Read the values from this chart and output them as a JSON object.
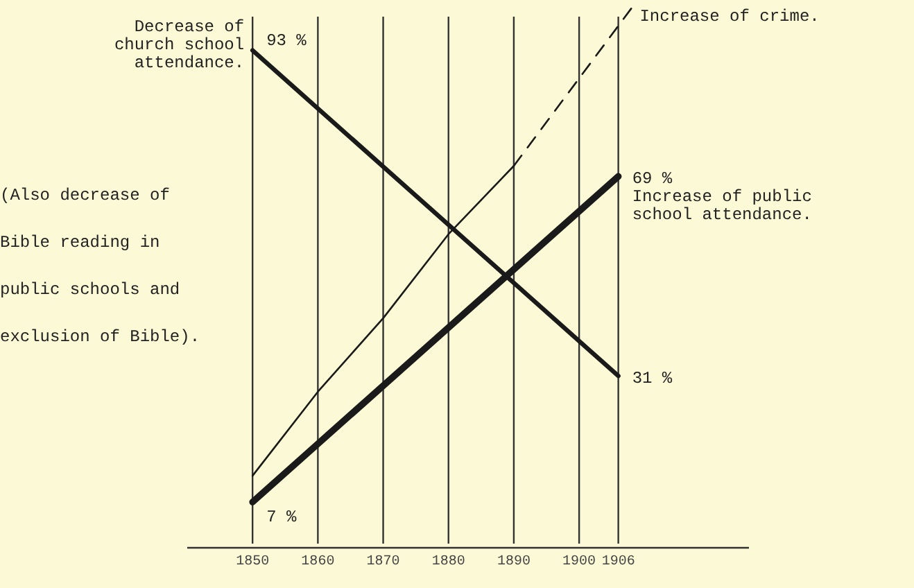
{
  "chart_data": {
    "type": "line",
    "xlim": [
      1840,
      1926
    ],
    "xticks": [
      1850,
      1860,
      1870,
      1880,
      1890,
      1900,
      1906
    ],
    "tick_labels": "x",
    "grid": "x",
    "legend": false,
    "series": [
      {
        "name": "Decrease of church school attendance.",
        "color": "#1a1a1a",
        "x": [
          1850,
          1906
        ],
        "values": [
          93,
          31
        ],
        "value_labels": [
          "93 %",
          "31 %"
        ],
        "line_style": "solid"
      },
      {
        "name": "Increase of public school attendance.",
        "color": "#1a1a1a",
        "x": [
          1850,
          1906
        ],
        "values": [
          7,
          69
        ],
        "value_labels": [
          "7 %",
          "69 %"
        ],
        "line_style": "solid"
      },
      {
        "color": "#1a1a1a",
        "x": [
          1850,
          1860,
          1870,
          1880,
          1890
        ],
        "values": [
          12,
          28,
          42,
          58,
          71
        ],
        "line_style": "solid"
      },
      {
        "name": "Increase of crime.",
        "color": "#1a1a1a",
        "x": [
          1890,
          1908
        ],
        "values": [
          71,
          101
        ],
        "line_style": "dashed"
      }
    ],
    "annotations": [
      "(Also decrease of Bible reading in public schools and exclusion of Bible)."
    ]
  }
}
